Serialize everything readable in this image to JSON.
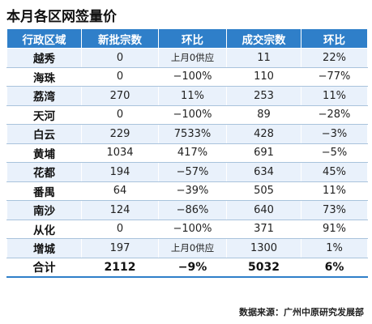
{
  "title": "本月各区网签量价",
  "headers": [
    "行政区域",
    "新批宗数",
    "环比",
    "成交宗数",
    "环比"
  ],
  "rows": [
    [
      "越秀",
      "0",
      "上月0供应",
      "11",
      "22%"
    ],
    [
      "海珠",
      "0",
      "−100%",
      "110",
      "−77%"
    ],
    [
      "荔湾",
      "270",
      "11%",
      "253",
      "11%"
    ],
    [
      "天河",
      "0",
      "−100%",
      "89",
      "−28%"
    ],
    [
      "白云",
      "229",
      "7533%",
      "428",
      "−3%"
    ],
    [
      "黄埔",
      "1034",
      "417%",
      "691",
      "−5%"
    ],
    [
      "花都",
      "194",
      "−57%",
      "634",
      "45%"
    ],
    [
      "番禺",
      "64",
      "−39%",
      "505",
      "11%"
    ],
    [
      "南沙",
      "124",
      "−86%",
      "640",
      "73%"
    ],
    [
      "从化",
      "0",
      "−100%",
      "371",
      "91%"
    ],
    [
      "增城",
      "197",
      "上月0供应",
      "1300",
      "1%"
    ]
  ],
  "total": [
    "合计",
    "2112",
    "−9%",
    "5032",
    "6%"
  ],
  "source": "数据来源：广州中原研究发展部",
  "colors": {
    "header_bg": "#2f7fc9",
    "stripe_bg": "#e9f1fb"
  }
}
